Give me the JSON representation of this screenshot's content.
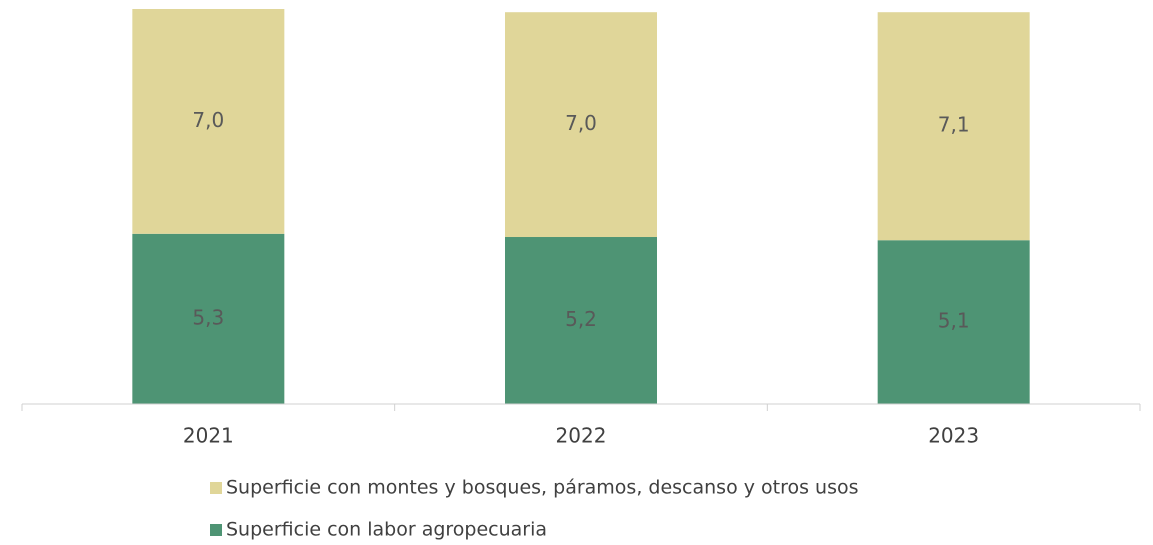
{
  "chart_data": {
    "type": "stacked_bar",
    "categories": [
      "2021",
      "2022",
      "2023"
    ],
    "series": [
      {
        "name": "Superficie con labor agropecuaria",
        "color": "#4e9474",
        "values": [
          5.3,
          5.2,
          5.1
        ],
        "value_labels": [
          "5,3",
          "5,2",
          "5,1"
        ]
      },
      {
        "name": "Superficie con montes y bosques, páramos, descanso y otros usos",
        "color": "#e0d699",
        "values": [
          7.0,
          7.0,
          7.1
        ],
        "value_labels": [
          "7,0",
          "7,0",
          "7,1"
        ]
      }
    ]
  }
}
